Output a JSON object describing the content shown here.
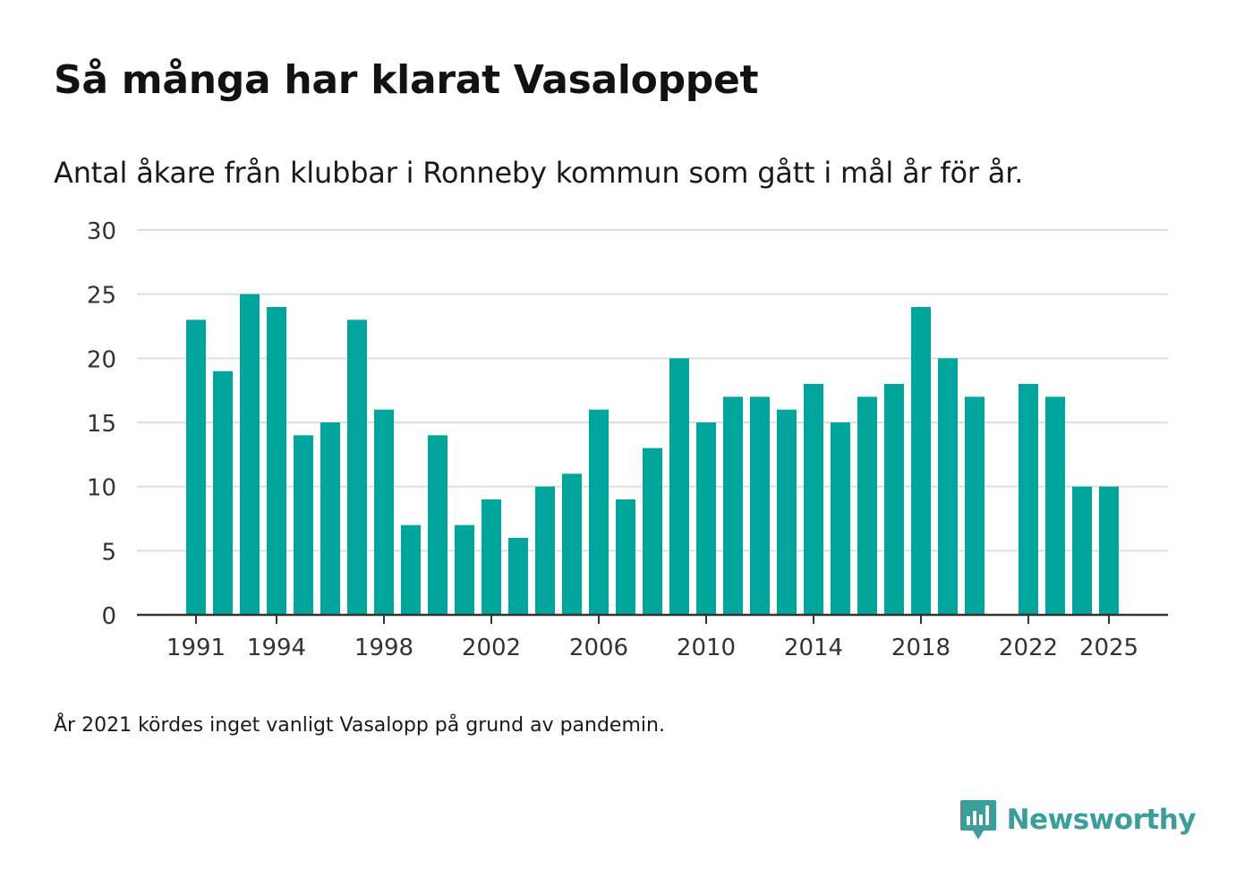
{
  "header": {
    "title": "Så många har klarat Vasaloppet",
    "subtitle": "Antal åkare från klubbar i Ronneby kommun som gått i mål år för år."
  },
  "footer": {
    "note": "År 2021 kördes inget vanligt Vasalopp på grund av pandemin.",
    "brand_name": "Newsworthy",
    "brand_icon": "chart-bubble-icon"
  },
  "colors": {
    "bar": "#00a69c",
    "grid": "#dddddd",
    "axis": "#333333",
    "brand": "#3a9e99"
  },
  "chart_data": {
    "type": "bar",
    "title": "Så många har klarat Vasaloppet",
    "subtitle": "Antal åkare från klubbar i Ronneby kommun som gått i mål år för år.",
    "xlabel": "",
    "ylabel": "",
    "grid": true,
    "ylim": [
      0,
      30
    ],
    "yticks": [
      0,
      5,
      10,
      15,
      20,
      25,
      30
    ],
    "xticks": [
      1991,
      1994,
      1998,
      2002,
      2006,
      2010,
      2014,
      2018,
      2022,
      2025
    ],
    "categories": [
      1991,
      1992,
      1993,
      1994,
      1995,
      1996,
      1997,
      1998,
      1999,
      2000,
      2001,
      2002,
      2003,
      2004,
      2005,
      2006,
      2007,
      2008,
      2009,
      2010,
      2011,
      2012,
      2013,
      2014,
      2015,
      2016,
      2017,
      2018,
      2019,
      2020,
      2021,
      2022,
      2023,
      2024,
      2025
    ],
    "values": [
      23,
      19,
      25,
      24,
      14,
      15,
      23,
      16,
      7,
      14,
      7,
      9,
      6,
      10,
      11,
      16,
      9,
      13,
      20,
      15,
      17,
      17,
      16,
      18,
      15,
      17,
      18,
      24,
      20,
      17,
      null,
      18,
      17,
      10,
      10
    ]
  }
}
